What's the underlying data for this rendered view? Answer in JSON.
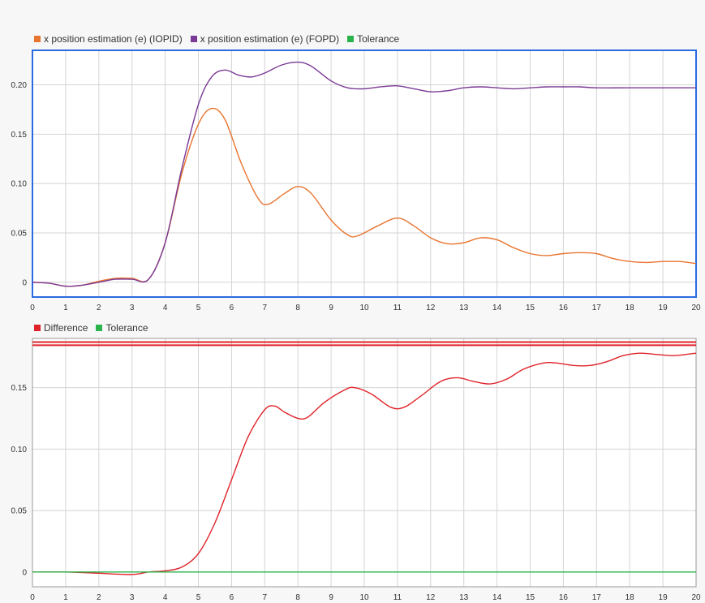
{
  "chart_data": [
    {
      "type": "line",
      "title": "",
      "xlabel": "",
      "ylabel": "",
      "xlim": [
        0,
        20
      ],
      "ylim": [
        -0.015,
        0.235
      ],
      "x_ticks": [
        0,
        1,
        2,
        3,
        4,
        5,
        6,
        7,
        8,
        9,
        10,
        11,
        12,
        13,
        14,
        15,
        16,
        17,
        18,
        19,
        20
      ],
      "y_ticks": [
        0,
        0.05,
        0.1,
        0.15,
        0.2
      ],
      "y_tick_labels": [
        "0",
        "0.05",
        "0.10",
        "0.15",
        "0.20"
      ],
      "grid": true,
      "selected": true,
      "legend_position": "top-left",
      "series": [
        {
          "name": "x position estimation (e) (IOPID)",
          "color": "#e8742f",
          "points": [
            [
              0,
              0
            ],
            [
              0.5,
              -0.001
            ],
            [
              1,
              -0.004
            ],
            [
              1.5,
              -0.003
            ],
            [
              2,
              0.001
            ],
            [
              2.5,
              0.004
            ],
            [
              3,
              0.004
            ],
            [
              3.5,
              0.003
            ],
            [
              4,
              0.04
            ],
            [
              4.5,
              0.11
            ],
            [
              5,
              0.16
            ],
            [
              5.4,
              0.176
            ],
            [
              5.8,
              0.165
            ],
            [
              6.3,
              0.12
            ],
            [
              6.8,
              0.085
            ],
            [
              7.1,
              0.079
            ],
            [
              7.6,
              0.09
            ],
            [
              8,
              0.097
            ],
            [
              8.4,
              0.09
            ],
            [
              9,
              0.063
            ],
            [
              9.5,
              0.048
            ],
            [
              9.8,
              0.047
            ],
            [
              10.4,
              0.057
            ],
            [
              11,
              0.065
            ],
            [
              11.5,
              0.057
            ],
            [
              12,
              0.045
            ],
            [
              12.5,
              0.039
            ],
            [
              13,
              0.04
            ],
            [
              13.5,
              0.045
            ],
            [
              14,
              0.043
            ],
            [
              14.5,
              0.035
            ],
            [
              15,
              0.029
            ],
            [
              15.5,
              0.027
            ],
            [
              16,
              0.029
            ],
            [
              16.5,
              0.03
            ],
            [
              17,
              0.029
            ],
            [
              17.5,
              0.024
            ],
            [
              18,
              0.021
            ],
            [
              18.5,
              0.02
            ],
            [
              19,
              0.021
            ],
            [
              19.5,
              0.021
            ],
            [
              20,
              0.019
            ]
          ]
        },
        {
          "name": "x position estimation (e) (FOPD)",
          "color": "#7b3a96",
          "points": [
            [
              0,
              0
            ],
            [
              0.5,
              -0.001
            ],
            [
              1,
              -0.004
            ],
            [
              1.5,
              -0.003
            ],
            [
              2,
              0.0
            ],
            [
              2.5,
              0.003
            ],
            [
              3,
              0.003
            ],
            [
              3.5,
              0.003
            ],
            [
              4,
              0.04
            ],
            [
              4.5,
              0.115
            ],
            [
              5,
              0.18
            ],
            [
              5.4,
              0.208
            ],
            [
              5.8,
              0.215
            ],
            [
              6.2,
              0.21
            ],
            [
              6.6,
              0.208
            ],
            [
              7,
              0.212
            ],
            [
              7.5,
              0.22
            ],
            [
              8,
              0.223
            ],
            [
              8.4,
              0.219
            ],
            [
              9,
              0.204
            ],
            [
              9.5,
              0.197
            ],
            [
              10,
              0.196
            ],
            [
              10.5,
              0.198
            ],
            [
              11,
              0.199
            ],
            [
              11.5,
              0.196
            ],
            [
              12,
              0.193
            ],
            [
              12.5,
              0.194
            ],
            [
              13,
              0.197
            ],
            [
              13.5,
              0.198
            ],
            [
              14,
              0.197
            ],
            [
              14.5,
              0.196
            ],
            [
              15,
              0.197
            ],
            [
              15.5,
              0.198
            ],
            [
              16,
              0.198
            ],
            [
              16.5,
              0.198
            ],
            [
              17,
              0.197
            ],
            [
              18,
              0.197
            ],
            [
              19,
              0.197
            ],
            [
              20,
              0.197
            ]
          ]
        },
        {
          "name": "Tolerance",
          "color": "#2ab34a",
          "points": []
        }
      ]
    },
    {
      "type": "line",
      "title": "",
      "xlabel": "",
      "ylabel": "",
      "xlim": [
        0,
        20
      ],
      "ylim": [
        -0.012,
        0.19
      ],
      "x_ticks": [
        0,
        1,
        2,
        3,
        4,
        5,
        6,
        7,
        8,
        9,
        10,
        11,
        12,
        13,
        14,
        15,
        16,
        17,
        18,
        19,
        20
      ],
      "y_ticks": [
        0,
        0.05,
        0.1,
        0.15
      ],
      "y_tick_labels": [
        "0",
        "0.05",
        "0.10",
        "0.15"
      ],
      "grid": true,
      "selected": false,
      "legend_position": "top-left",
      "series": [
        {
          "name": "Difference",
          "color": "#e0232a",
          "points": [
            [
              0,
              0
            ],
            [
              1,
              0
            ],
            [
              2,
              -0.001
            ],
            [
              3,
              -0.002
            ],
            [
              3.5,
              0.0
            ],
            [
              4,
              0.001
            ],
            [
              4.5,
              0.004
            ],
            [
              5,
              0.015
            ],
            [
              5.5,
              0.04
            ],
            [
              6,
              0.075
            ],
            [
              6.5,
              0.11
            ],
            [
              7,
              0.132
            ],
            [
              7.3,
              0.135
            ],
            [
              7.6,
              0.13
            ],
            [
              8,
              0.125
            ],
            [
              8.3,
              0.126
            ],
            [
              8.8,
              0.138
            ],
            [
              9.4,
              0.148
            ],
            [
              9.7,
              0.15
            ],
            [
              10.2,
              0.145
            ],
            [
              10.8,
              0.134
            ],
            [
              11.2,
              0.134
            ],
            [
              11.7,
              0.143
            ],
            [
              12.3,
              0.155
            ],
            [
              12.8,
              0.158
            ],
            [
              13.3,
              0.155
            ],
            [
              13.8,
              0.153
            ],
            [
              14.3,
              0.157
            ],
            [
              14.8,
              0.165
            ],
            [
              15.4,
              0.17
            ],
            [
              15.8,
              0.17
            ],
            [
              16.3,
              0.168
            ],
            [
              16.8,
              0.168
            ],
            [
              17.3,
              0.171
            ],
            [
              17.8,
              0.176
            ],
            [
              18.3,
              0.178
            ],
            [
              18.8,
              0.177
            ],
            [
              19.3,
              0.176
            ],
            [
              19.7,
              0.177
            ],
            [
              20,
              0.178
            ]
          ]
        },
        {
          "name": "Tolerance",
          "color": "#2ab34a",
          "points": [
            [
              0,
              0
            ],
            [
              20,
              0
            ]
          ]
        }
      ],
      "reference_bands": [
        {
          "series": "Difference",
          "value": 0.187,
          "color": "#e0232a"
        },
        {
          "series": "Difference",
          "value": 0.1845,
          "color": "#e0232a"
        }
      ]
    }
  ]
}
